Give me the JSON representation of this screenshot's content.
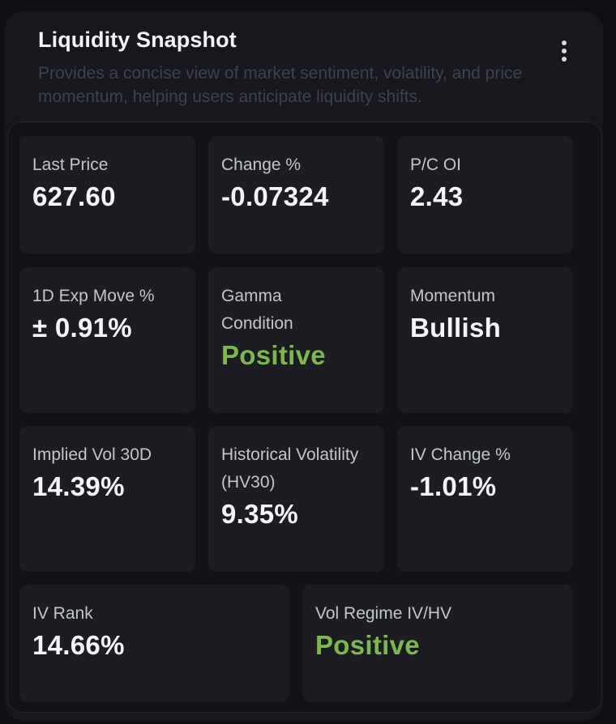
{
  "widget": {
    "title": "Liquidity Snapshot",
    "description": "Provides a concise view of market sentiment, volatility, and price momentum, helping users anticipate liquidity shifts.",
    "menu_icon": "more-vertical-icon"
  },
  "colors": {
    "background": "#0e1015",
    "card": "#16181e",
    "tile": "#1b1d23",
    "positive": "#7cb84f",
    "text": "#f4f5f7",
    "muted": "#3d424d"
  },
  "metrics": [
    {
      "label": "Last Price",
      "value": "627.60"
    },
    {
      "label": "Change %",
      "value": "-0.07324"
    },
    {
      "label": "P/C OI",
      "value": "2.43"
    },
    {
      "label": "1D Exp Move %",
      "value": "± 0.91%"
    },
    {
      "label": "Gamma Condition",
      "value": "Positive"
    },
    {
      "label": "Momentum",
      "value": "Bullish"
    },
    {
      "label": "Implied Vol 30D",
      "value": "14.39%"
    },
    {
      "label": "Historical Volatility (HV30)",
      "value": "9.35%"
    },
    {
      "label": "IV Change %",
      "value": "-1.01%"
    },
    {
      "label": "IV Rank",
      "value": "14.66%"
    },
    {
      "label": "Vol Regime IV/HV",
      "value": "Positive"
    }
  ]
}
